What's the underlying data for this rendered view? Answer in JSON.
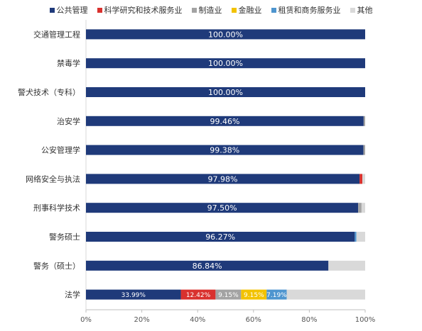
{
  "chart_data": {
    "type": "bar",
    "orientation": "horizontal",
    "stacked": true,
    "title": "",
    "xlabel": "",
    "ylabel": "",
    "xlim": [
      0,
      100
    ],
    "x_ticks": [
      "0%",
      "20%",
      "40%",
      "60%",
      "80%",
      "100%"
    ],
    "categories": [
      "交通管理工程",
      "禁毒学",
      "警犬技术（专科）",
      "治安学",
      "公安管理学",
      "网络安全与执法",
      "刑事科学技术",
      "警务硕士",
      "警务（硕士）",
      "法学"
    ],
    "series": [
      {
        "name": "公共管理",
        "color": "#1f3a7a",
        "values": [
          100.0,
          100.0,
          100.0,
          99.46,
          99.38,
          97.98,
          97.5,
          96.27,
          86.84,
          33.99
        ]
      },
      {
        "name": "科学研究和技术服务业",
        "color": "#d9312e",
        "values": [
          0,
          0,
          0,
          0,
          0,
          1.0,
          0,
          0,
          0,
          12.42
        ]
      },
      {
        "name": "制造业",
        "color": "#a3a3a3",
        "values": [
          0,
          0,
          0,
          0.54,
          0.62,
          0,
          1.2,
          0,
          0,
          9.15
        ]
      },
      {
        "name": "金融业",
        "color": "#f2c200",
        "values": [
          0,
          0,
          0,
          0,
          0,
          0,
          0,
          0,
          0,
          9.15
        ]
      },
      {
        "name": "租赁和商务服务业",
        "color": "#4e95cf",
        "values": [
          0,
          0,
          0,
          0,
          0,
          0,
          0,
          0.6,
          0,
          7.19
        ]
      },
      {
        "name": "其他",
        "color": "#d9d9d9",
        "values": [
          0,
          0,
          0,
          0,
          0,
          1.02,
          1.3,
          3.13,
          13.16,
          28.1
        ]
      }
    ],
    "data_labels": [
      [
        "100.00%",
        "",
        "",
        "",
        "",
        ""
      ],
      [
        "100.00%",
        "",
        "",
        "",
        "",
        ""
      ],
      [
        "100.00%",
        "",
        "",
        "",
        "",
        ""
      ],
      [
        "99.46%",
        "",
        "",
        "",
        "",
        ""
      ],
      [
        "99.38%",
        "",
        "",
        "",
        "",
        ""
      ],
      [
        "97.98%",
        "",
        "",
        "",
        "",
        ""
      ],
      [
        "97.50%",
        "",
        "",
        "",
        "",
        ""
      ],
      [
        "96.27%",
        "",
        "",
        "",
        "",
        ""
      ],
      [
        "86.84%",
        "",
        "",
        "",
        "",
        ""
      ],
      [
        "33.99%",
        "12.42%",
        "9.15%",
        "9.15%",
        "7.19%",
        ""
      ]
    ],
    "legend_position": "top-center",
    "grid": false
  }
}
